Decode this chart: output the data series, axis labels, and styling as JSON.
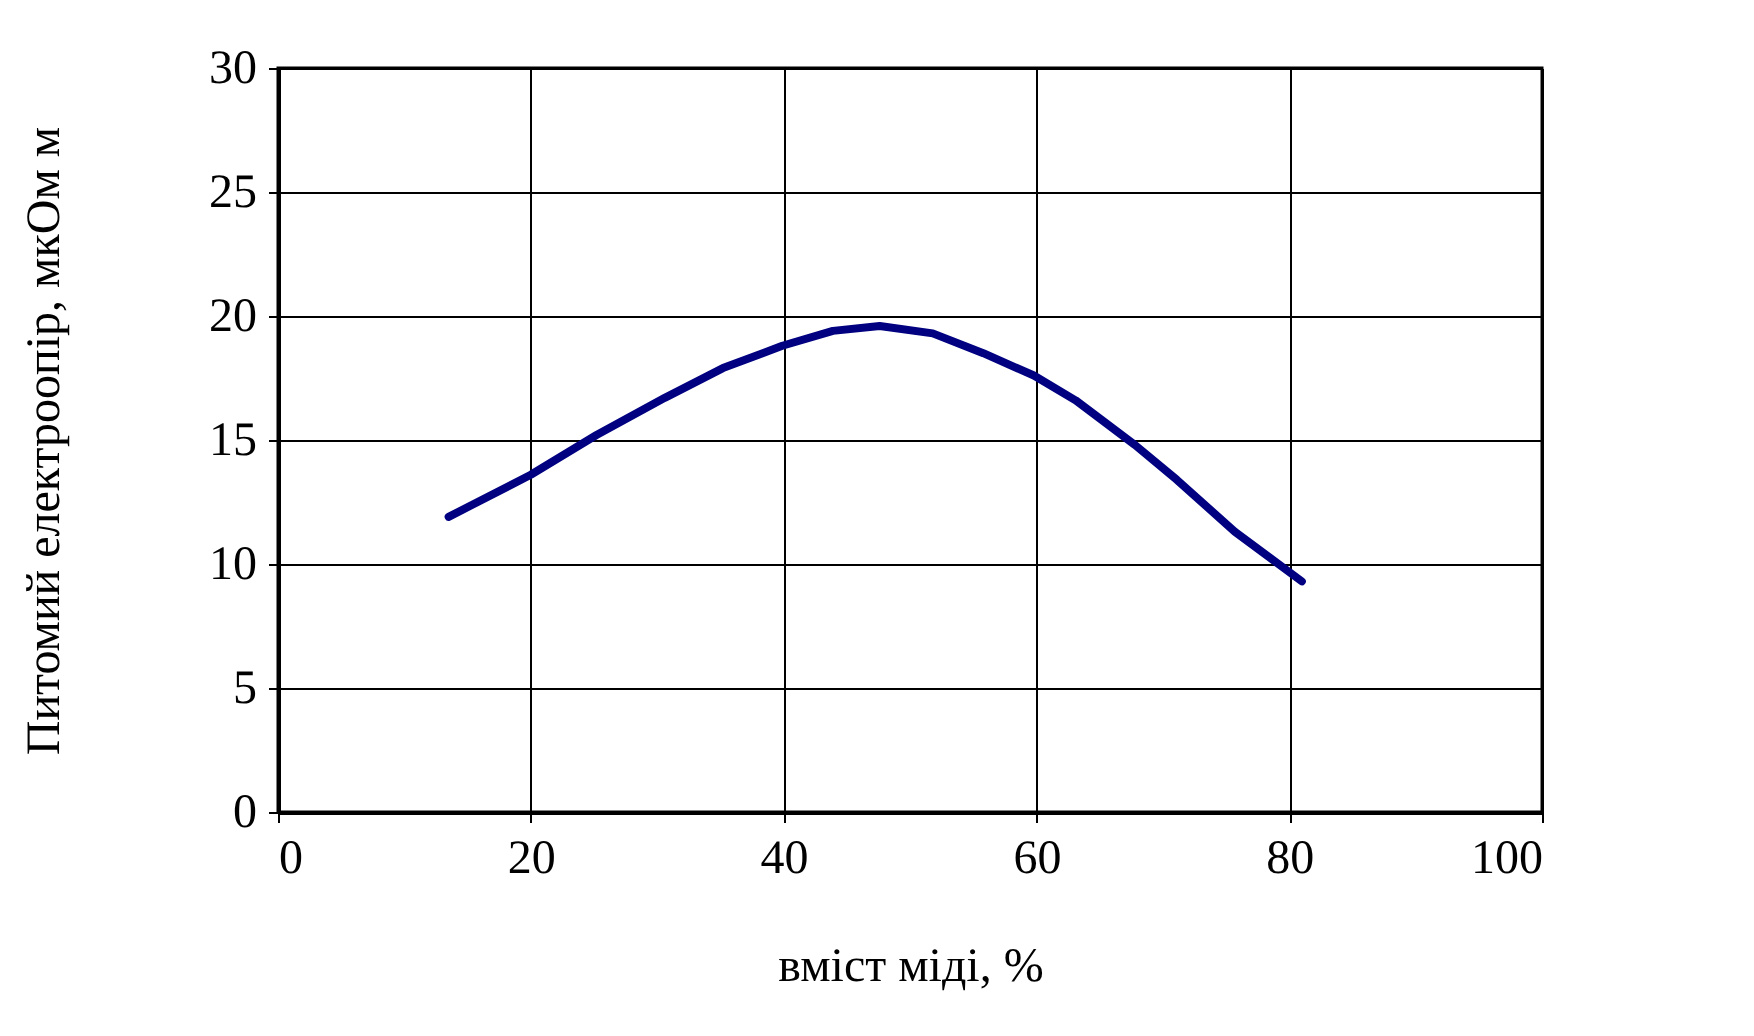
{
  "chart_data": {
    "type": "line",
    "xlabel": "вміст міді, %",
    "ylabel": "Питомий електроопір, мкОм м",
    "x": [
      13.5,
      20,
      25.2,
      30.6,
      35.2,
      39.9,
      43.9,
      47.6,
      51.8,
      55.8,
      59.8,
      63.1,
      67.8,
      71.1,
      75.7,
      81
    ],
    "series": [
      {
        "color": "#000080",
        "values": [
          11.9,
          13.6,
          15.2,
          16.7,
          17.9,
          18.8,
          19.4,
          19.6,
          19.3,
          18.5,
          17.6,
          16.6,
          14.8,
          13.4,
          11.3,
          9.3
        ]
      }
    ],
    "xlim": [
      0,
      100
    ],
    "xticks": [
      0,
      20,
      40,
      60,
      80,
      100
    ],
    "ylim": [
      0,
      30
    ],
    "yticks": [
      0,
      5,
      10,
      15,
      20,
      25,
      30
    ],
    "grid": true,
    "marker": "none",
    "line_style": "solid"
  }
}
